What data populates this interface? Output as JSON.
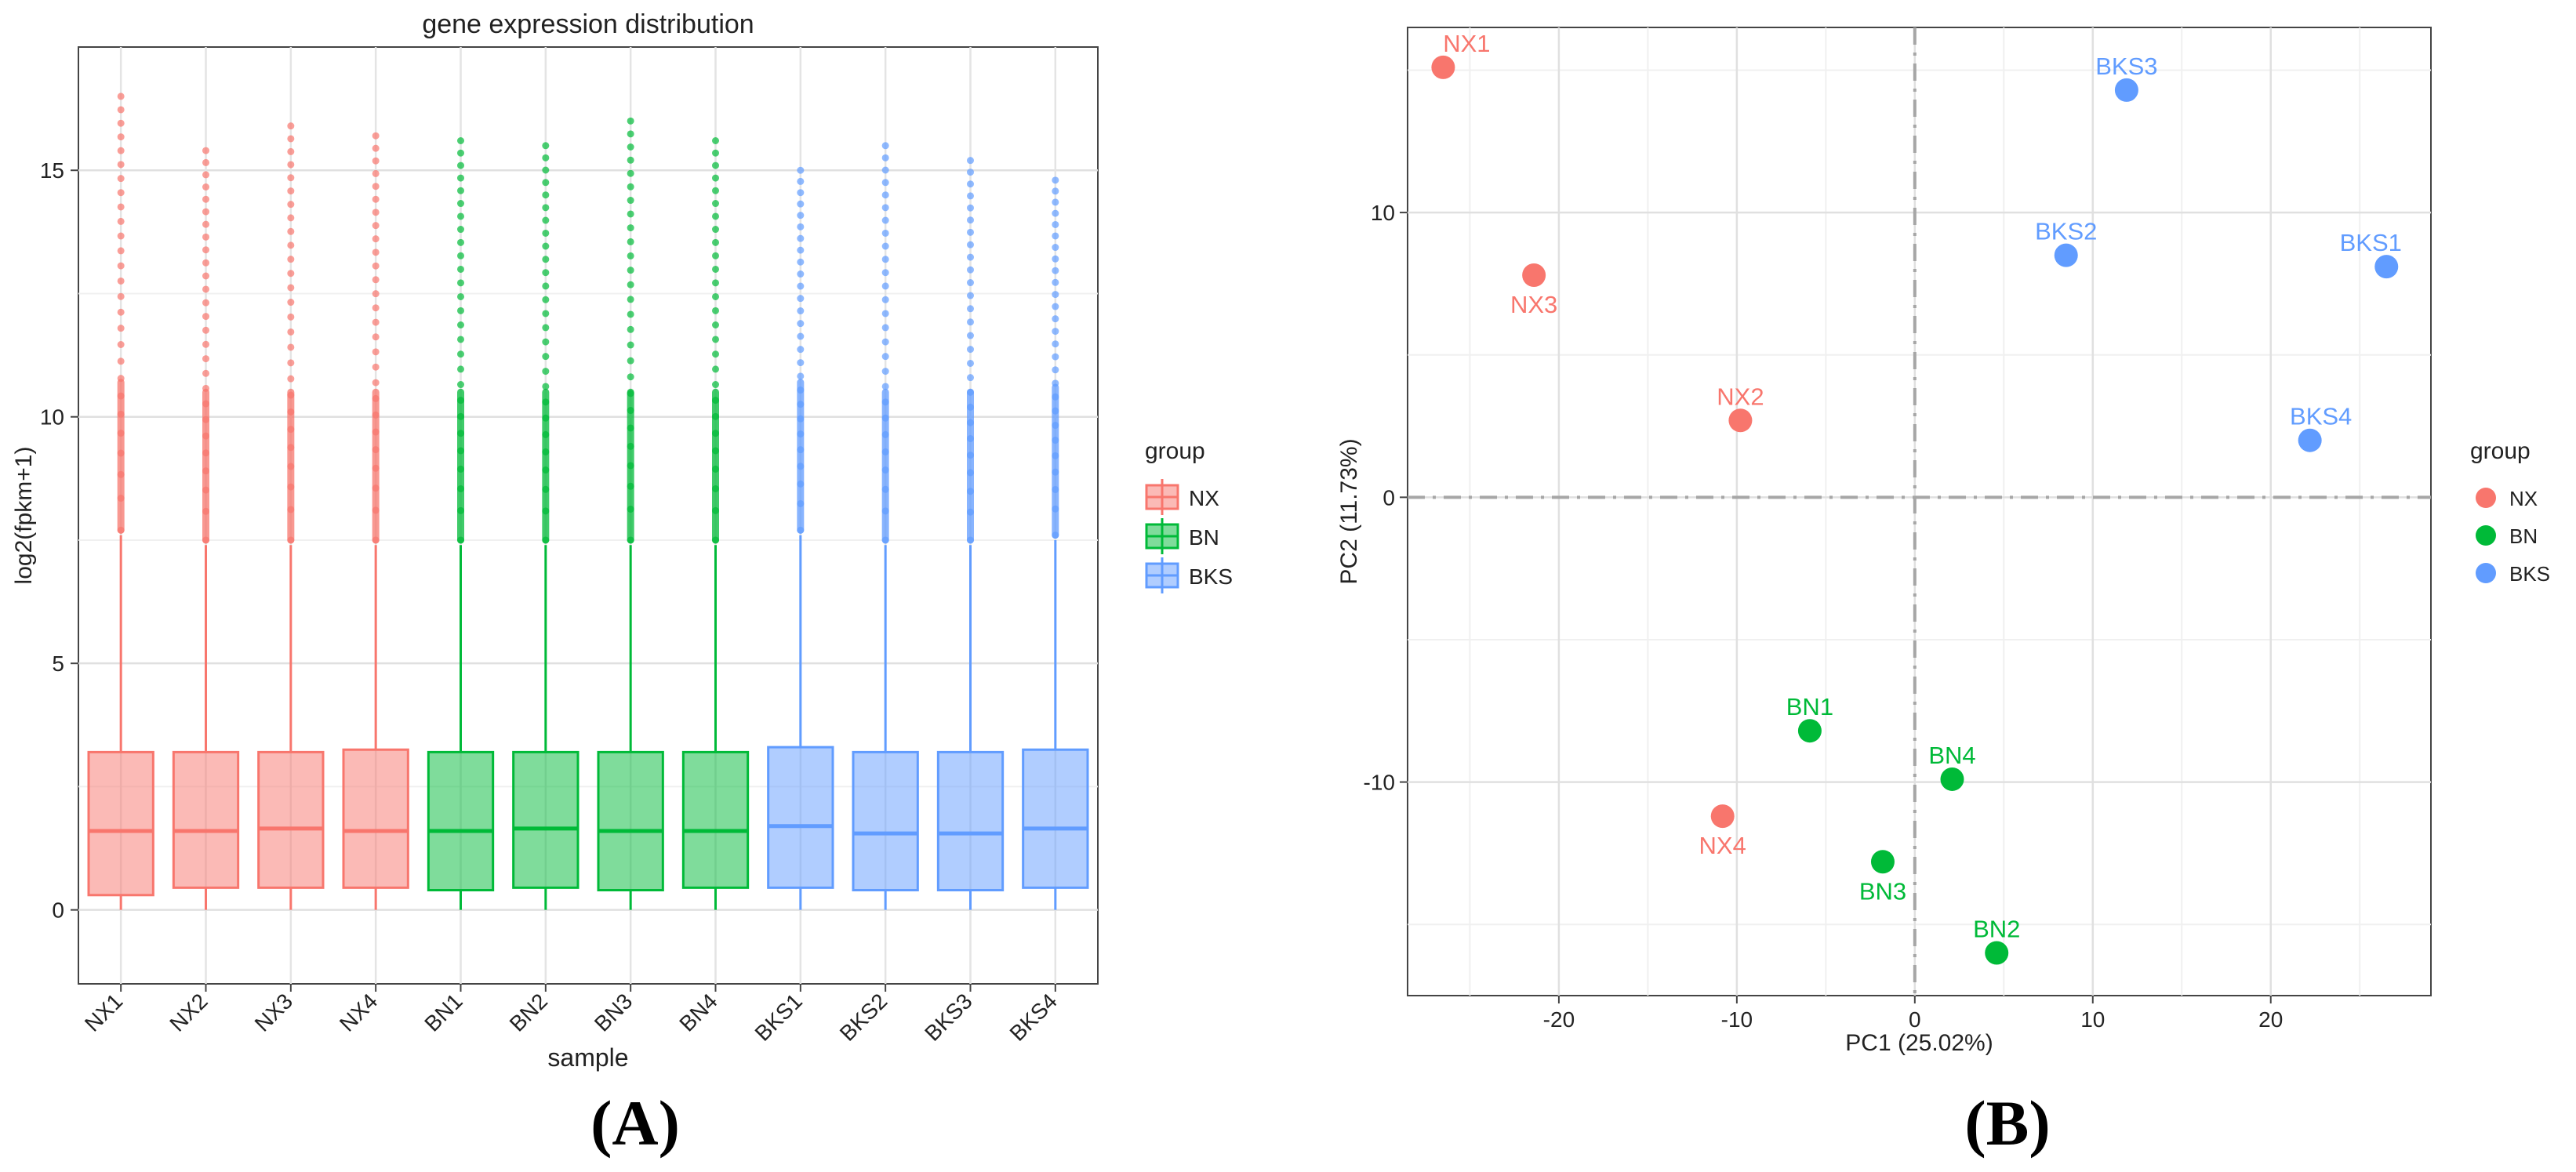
{
  "chart_data": [
    {
      "type": "box",
      "title": "gene expression distribution",
      "xlabel": "sample",
      "ylabel": "log2(fpkm+1)",
      "ylim": [
        -1.5,
        17.5
      ],
      "yticks": [
        0,
        5,
        10,
        15
      ],
      "grid": true,
      "legend_title": "group",
      "legend_position": "right",
      "groups": [
        {
          "name": "NX",
          "color": "#F8766D"
        },
        {
          "name": "BN",
          "color": "#00BA38"
        },
        {
          "name": "BKS",
          "color": "#619CFF"
        }
      ],
      "samples": [
        {
          "name": "NX1",
          "group": "NX",
          "q1": 0.3,
          "median": 1.6,
          "q3": 3.2,
          "whisker_low": 0.0,
          "whisker_high": 7.6,
          "outlier_max": 16.5
        },
        {
          "name": "NX2",
          "group": "NX",
          "q1": 0.45,
          "median": 1.6,
          "q3": 3.2,
          "whisker_low": 0.0,
          "whisker_high": 7.4,
          "outlier_max": 15.4
        },
        {
          "name": "NX3",
          "group": "NX",
          "q1": 0.45,
          "median": 1.65,
          "q3": 3.2,
          "whisker_low": 0.0,
          "whisker_high": 7.4,
          "outlier_max": 15.9
        },
        {
          "name": "NX4",
          "group": "NX",
          "q1": 0.45,
          "median": 1.6,
          "q3": 3.25,
          "whisker_low": 0.0,
          "whisker_high": 7.4,
          "outlier_max": 15.7
        },
        {
          "name": "BN1",
          "group": "BN",
          "q1": 0.4,
          "median": 1.6,
          "q3": 3.2,
          "whisker_low": 0.0,
          "whisker_high": 7.4,
          "outlier_max": 15.6
        },
        {
          "name": "BN2",
          "group": "BN",
          "q1": 0.45,
          "median": 1.65,
          "q3": 3.2,
          "whisker_low": 0.0,
          "whisker_high": 7.4,
          "outlier_max": 15.5
        },
        {
          "name": "BN3",
          "group": "BN",
          "q1": 0.4,
          "median": 1.6,
          "q3": 3.2,
          "whisker_low": 0.0,
          "whisker_high": 7.4,
          "outlier_max": 16.0
        },
        {
          "name": "BN4",
          "group": "BN",
          "q1": 0.45,
          "median": 1.6,
          "q3": 3.2,
          "whisker_low": 0.0,
          "whisker_high": 7.4,
          "outlier_max": 15.6
        },
        {
          "name": "BKS1",
          "group": "BKS",
          "q1": 0.45,
          "median": 1.7,
          "q3": 3.3,
          "whisker_low": 0.0,
          "whisker_high": 7.6,
          "outlier_max": 15.0
        },
        {
          "name": "BKS2",
          "group": "BKS",
          "q1": 0.4,
          "median": 1.55,
          "q3": 3.2,
          "whisker_low": 0.0,
          "whisker_high": 7.4,
          "outlier_max": 15.5
        },
        {
          "name": "BKS3",
          "group": "BKS",
          "q1": 0.4,
          "median": 1.55,
          "q3": 3.2,
          "whisker_low": 0.0,
          "whisker_high": 7.4,
          "outlier_max": 15.2
        },
        {
          "name": "BKS4",
          "group": "BKS",
          "q1": 0.45,
          "median": 1.65,
          "q3": 3.25,
          "whisker_low": 0.0,
          "whisker_high": 7.5,
          "outlier_max": 14.8
        }
      ]
    },
    {
      "type": "scatter",
      "title": "",
      "xlabel": "PC1 (25.02%)",
      "ylabel": "PC2 (11.73%)",
      "xlim": [
        -28.5,
        29.0
      ],
      "ylim": [
        -17.5,
        16.5
      ],
      "xticks": [
        -20,
        -10,
        0,
        10,
        20
      ],
      "yticks": [
        -10,
        0,
        10
      ],
      "grid": true,
      "legend_title": "group",
      "legend_position": "right",
      "groups": [
        {
          "name": "NX",
          "color": "#F8766D"
        },
        {
          "name": "BN",
          "color": "#00BA38"
        },
        {
          "name": "BKS",
          "color": "#619CFF"
        }
      ],
      "points": [
        {
          "label": "NX1",
          "group": "NX",
          "x": -26.5,
          "y": 15.1
        },
        {
          "label": "NX2",
          "group": "NX",
          "x": -9.8,
          "y": 2.7
        },
        {
          "label": "NX3",
          "group": "NX",
          "x": -21.4,
          "y": 7.8
        },
        {
          "label": "NX4",
          "group": "NX",
          "x": -10.8,
          "y": -11.2
        },
        {
          "label": "BN1",
          "group": "BN",
          "x": -5.9,
          "y": -8.2
        },
        {
          "label": "BN2",
          "group": "BN",
          "x": 4.6,
          "y": -16.0
        },
        {
          "label": "BN3",
          "group": "BN",
          "x": -1.8,
          "y": -12.8
        },
        {
          "label": "BN4",
          "group": "BN",
          "x": 2.1,
          "y": -9.9
        },
        {
          "label": "BKS1",
          "group": "BKS",
          "x": 26.5,
          "y": 8.1
        },
        {
          "label": "BKS2",
          "group": "BKS",
          "x": 8.5,
          "y": 8.5
        },
        {
          "label": "BKS3",
          "group": "BKS",
          "x": 11.9,
          "y": 14.3
        },
        {
          "label": "BKS4",
          "group": "BKS",
          "x": 22.2,
          "y": 2.0
        }
      ]
    }
  ],
  "panel_labels": [
    "(A)",
    "(B)"
  ]
}
